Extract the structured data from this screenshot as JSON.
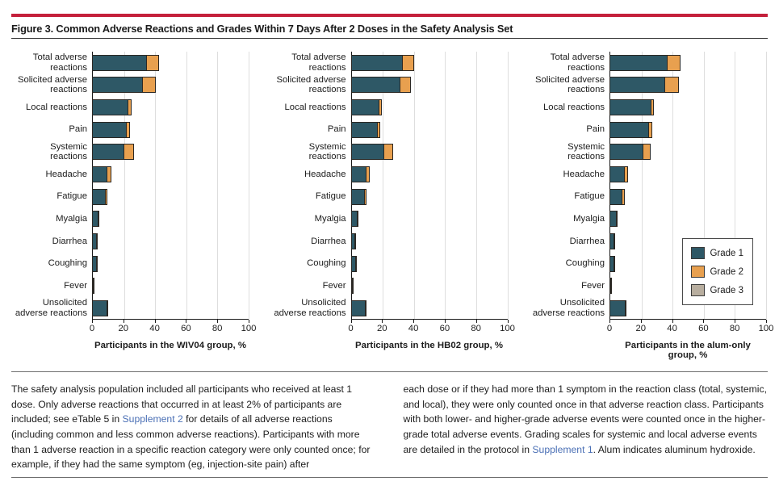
{
  "header": {
    "title": "Figure 3. Common Adverse Reactions and Grades Within 7 Days After 2 Doses in the Safety Analysis Set"
  },
  "accent_color": "#C4203B",
  "legend": {
    "position": "right-panel-inside",
    "items": [
      {
        "label": "Grade 1",
        "color": "#2E5866"
      },
      {
        "label": "Grade 2",
        "color": "#E8A04F"
      },
      {
        "label": "Grade 3",
        "color": "#B8AE9F"
      }
    ]
  },
  "chart_data": [
    {
      "type": "bar",
      "orientation": "horizontal",
      "stacked": true,
      "group": "WIV04",
      "xlabel": "Participants in the WIV04 group, %",
      "xlim": [
        0,
        100
      ],
      "xticks": [
        0,
        20,
        40,
        60,
        80,
        100
      ],
      "gridlines": [
        20,
        40,
        60,
        80,
        100
      ],
      "grid": true,
      "categories": [
        "Total adverse reactions",
        "Solicited adverse reactions",
        "Local reactions",
        "Pain",
        "Systemic reactions",
        "Headache",
        "Fatigue",
        "Myalgia",
        "Diarrhea",
        "Coughing",
        "Fever",
        "Unsolicited adverse reactions"
      ],
      "series": [
        {
          "name": "Grade 1",
          "values": [
            35,
            32.5,
            23,
            22,
            20.5,
            10,
            9,
            4.5,
            3.5,
            3.5,
            1.2,
            10
          ]
        },
        {
          "name": "Grade 2",
          "values": [
            8,
            8.5,
            3,
            2.5,
            7,
            3,
            1.5,
            0.5,
            0.3,
            0.3,
            0.2,
            0.8
          ]
        },
        {
          "name": "Grade 3",
          "values": [
            0,
            0,
            0,
            0,
            0,
            0,
            0,
            0,
            0,
            0,
            0,
            0
          ]
        }
      ]
    },
    {
      "type": "bar",
      "orientation": "horizontal",
      "stacked": true,
      "group": "HB02",
      "xlabel": "Participants in the HB02 group, %",
      "xlim": [
        0,
        100
      ],
      "xticks": [
        0,
        20,
        40,
        60,
        80,
        100
      ],
      "gridlines": [
        20,
        40,
        60,
        80,
        100
      ],
      "grid": true,
      "categories": [
        "Total adverse reactions",
        "Solicited adverse reactions",
        "Local reactions",
        "Pain",
        "Systemic reactions",
        "Headache",
        "Fatigue",
        "Myalgia",
        "Diarrhea",
        "Coughing",
        "Fever",
        "Unsolicited adverse reactions"
      ],
      "series": [
        {
          "name": "Grade 1",
          "values": [
            33,
            31.5,
            18.5,
            17.5,
            21.5,
            10,
            9,
            4.5,
            3,
            3.5,
            1.5,
            9.5
          ]
        },
        {
          "name": "Grade 2",
          "values": [
            8,
            7.5,
            2,
            2,
            6,
            3,
            1.5,
            0.5,
            0.3,
            0.3,
            0.2,
            0.7
          ]
        },
        {
          "name": "Grade 3",
          "values": [
            0,
            0,
            0,
            0,
            0,
            0,
            0,
            0,
            0,
            0,
            0,
            0
          ]
        }
      ]
    },
    {
      "type": "bar",
      "orientation": "horizontal",
      "stacked": true,
      "group": "alum-only",
      "xlabel": "Participants in the alum-only group, %",
      "xlim": [
        0,
        100
      ],
      "xticks": [
        0,
        20,
        40,
        60,
        80,
        100
      ],
      "gridlines": [
        20,
        40,
        60,
        80,
        100
      ],
      "grid": true,
      "categories": [
        "Total adverse reactions",
        "Solicited adverse reactions",
        "Local reactions",
        "Pain",
        "Systemic reactions",
        "Headache",
        "Fatigue",
        "Myalgia",
        "Diarrhea",
        "Coughing",
        "Fever",
        "Unsolicited adverse reactions"
      ],
      "series": [
        {
          "name": "Grade 1",
          "values": [
            37,
            35.5,
            27,
            25.5,
            21.5,
            10,
            8.5,
            5,
            3.5,
            3.5,
            1.5,
            10.5
          ]
        },
        {
          "name": "Grade 2",
          "values": [
            8.5,
            9,
            2,
            2.5,
            5.5,
            2.5,
            2,
            0.4,
            0.3,
            0.3,
            0.2,
            0.5
          ]
        },
        {
          "name": "Grade 3",
          "values": [
            0,
            0,
            0,
            0,
            0,
            0,
            0,
            0,
            0,
            0,
            0,
            0
          ]
        }
      ]
    }
  ],
  "footnotes": {
    "left": [
      {
        "text": "The safety analysis population included all participants who received at least 1 dose. Only adverse reactions that occurred in at least 2% of participants are included; see eTable 5 in ",
        "link": false
      },
      {
        "text": "Supplement 2",
        "link": true
      },
      {
        "text": " for details of all adverse reactions (including common and less common adverse reactions). Participants with more than 1 adverse reaction in a specific reaction category were only counted once; for example, if they had the same symptom (eg, injection-site pain) after",
        "link": false
      }
    ],
    "right": [
      {
        "text": "each dose or if they had more than 1 symptom in the reaction class (total, systemic, and local), they were only counted once in that adverse reaction class. Participants with both lower- and higher-grade adverse events were counted once in the higher-grade total adverse events. Grading scales for systemic and local adverse events are detailed in the protocol in ",
        "link": false
      },
      {
        "text": "Supplement 1",
        "link": true
      },
      {
        "text": ". Alum indicates aluminum hydroxide.",
        "link": false
      }
    ]
  }
}
